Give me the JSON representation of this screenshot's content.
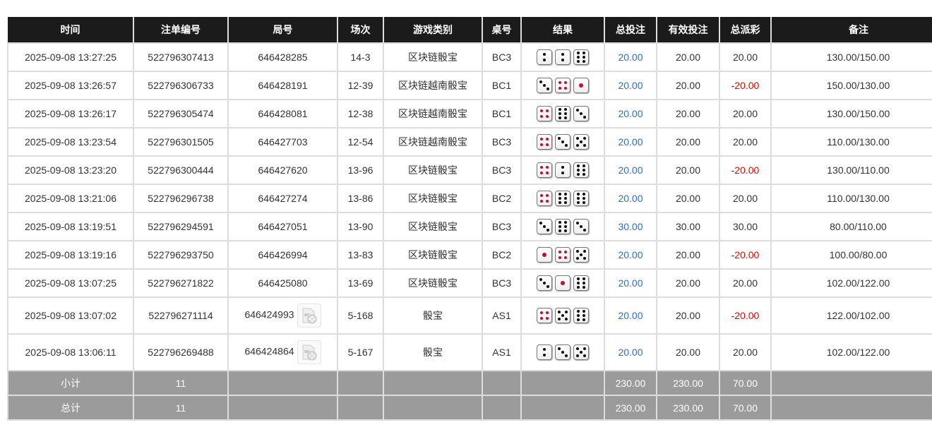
{
  "headers": [
    "时间",
    "注单编号",
    "局号",
    "场次",
    "游戏类别",
    "桌号",
    "结果",
    "总投注",
    "有效投注",
    "总派彩",
    "备注"
  ],
  "colors": {
    "header_bg": "#1b1b1b",
    "bet_blue": "#2a6fd6",
    "loss_red": "#e00000",
    "summary_bg": "#9b9b9b",
    "red_pip": "#c0102a"
  },
  "rows": [
    {
      "time": "2025-09-08 13:27:25",
      "bet_no": "522796307413",
      "round": "646428285",
      "session": "14-3",
      "game": "区块链骰宝",
      "table": "BC3",
      "dice": [
        2,
        2,
        6
      ],
      "total_bet": "20.00",
      "valid_bet": "20.00",
      "payout": "20.00",
      "payout_negative": false,
      "note": "130.00/150.00",
      "video": false
    },
    {
      "time": "2025-09-08 13:26:57",
      "bet_no": "522796306733",
      "round": "646428191",
      "session": "12-39",
      "game": "区块链越南骰宝",
      "table": "BC1",
      "dice": [
        3,
        4,
        1
      ],
      "total_bet": "20.00",
      "valid_bet": "20.00",
      "payout": "-20.00",
      "payout_negative": true,
      "note": "150.00/130.00",
      "video": false
    },
    {
      "time": "2025-09-08 13:26:17",
      "bet_no": "522796305474",
      "round": "646428081",
      "session": "12-38",
      "game": "区块链越南骰宝",
      "table": "BC1",
      "dice": [
        4,
        6,
        3
      ],
      "total_bet": "20.00",
      "valid_bet": "20.00",
      "payout": "20.00",
      "payout_negative": false,
      "note": "130.00/150.00",
      "video": false
    },
    {
      "time": "2025-09-08 13:23:54",
      "bet_no": "522796301505",
      "round": "646427703",
      "session": "12-54",
      "game": "区块链越南骰宝",
      "table": "BC3",
      "dice": [
        4,
        3,
        5
      ],
      "total_bet": "20.00",
      "valid_bet": "20.00",
      "payout": "20.00",
      "payout_negative": false,
      "note": "110.00/130.00",
      "video": false
    },
    {
      "time": "2025-09-08 13:23:20",
      "bet_no": "522796300444",
      "round": "646427620",
      "session": "13-96",
      "game": "区块链骰宝",
      "table": "BC3",
      "dice": [
        4,
        2,
        6
      ],
      "total_bet": "20.00",
      "valid_bet": "20.00",
      "payout": "-20.00",
      "payout_negative": true,
      "note": "130.00/110.00",
      "video": false
    },
    {
      "time": "2025-09-08 13:21:06",
      "bet_no": "522796296738",
      "round": "646427274",
      "session": "13-86",
      "game": "区块链骰宝",
      "table": "BC2",
      "dice": [
        4,
        6,
        6
      ],
      "total_bet": "20.00",
      "valid_bet": "20.00",
      "payout": "20.00",
      "payout_negative": false,
      "note": "110.00/130.00",
      "video": false
    },
    {
      "time": "2025-09-08 13:19:51",
      "bet_no": "522796294591",
      "round": "646427051",
      "session": "13-90",
      "game": "区块链骰宝",
      "table": "BC3",
      "dice": [
        3,
        6,
        3
      ],
      "total_bet": "30.00",
      "valid_bet": "30.00",
      "payout": "30.00",
      "payout_negative": false,
      "note": "80.00/110.00",
      "video": false
    },
    {
      "time": "2025-09-08 13:19:16",
      "bet_no": "522796293750",
      "round": "646426994",
      "session": "13-83",
      "game": "区块链骰宝",
      "table": "BC2",
      "dice": [
        1,
        4,
        5
      ],
      "total_bet": "20.00",
      "valid_bet": "20.00",
      "payout": "-20.00",
      "payout_negative": true,
      "note": "100.00/80.00",
      "video": false
    },
    {
      "time": "2025-09-08 13:07:25",
      "bet_no": "522796271822",
      "round": "646425080",
      "session": "13-69",
      "game": "区块链骰宝",
      "table": "BC3",
      "dice": [
        3,
        1,
        6
      ],
      "total_bet": "20.00",
      "valid_bet": "20.00",
      "payout": "20.00",
      "payout_negative": false,
      "note": "102.00/122.00",
      "video": false
    },
    {
      "time": "2025-09-08 13:07:02",
      "bet_no": "522796271114",
      "round": "646424993",
      "session": "5-168",
      "game": "骰宝",
      "table": "AS1",
      "dice": [
        4,
        5,
        6
      ],
      "total_bet": "20.00",
      "valid_bet": "20.00",
      "payout": "-20.00",
      "payout_negative": true,
      "note": "122.00/102.00",
      "video": true
    },
    {
      "time": "2025-09-08 13:06:11",
      "bet_no": "522796269488",
      "round": "646424864",
      "session": "5-167",
      "game": "骰宝",
      "table": "AS1",
      "dice": [
        2,
        3,
        5
      ],
      "total_bet": "20.00",
      "valid_bet": "20.00",
      "payout": "20.00",
      "payout_negative": false,
      "note": "102.00/122.00",
      "video": true
    }
  ],
  "subtotal": {
    "label": "小计",
    "count": "11",
    "total_bet": "230.00",
    "valid_bet": "230.00",
    "payout": "70.00"
  },
  "total": {
    "label": "总计",
    "count": "11",
    "total_bet": "230.00",
    "valid_bet": "230.00",
    "payout": "70.00"
  }
}
